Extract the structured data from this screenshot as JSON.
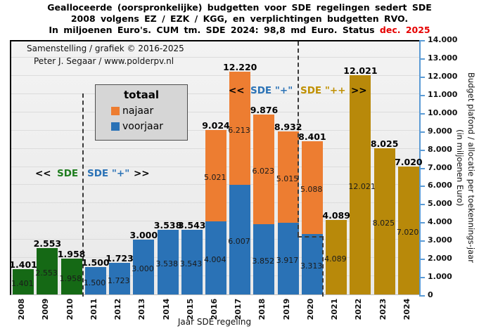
{
  "title": {
    "line1": "Gealloceerde (oorspronkelijke) budgetten voor SDE regelingen sedert SDE",
    "line2": "2008 volgens EZ / EZK / KGG, en verplichtingen budgetten RVO.",
    "line3_prefix": "In miljoenen Euro's. CUM tm. SDE 2024: 98,8 md Euro. Status ",
    "line3_status": "dec. 2025",
    "status_color": "#e60000"
  },
  "credits": {
    "line1": "Samenstelling  / grafiek  © 2016-2025",
    "line2": "Peter J. Segaar / www.polderpv.nl"
  },
  "legend": {
    "title": "totaal",
    "items": [
      {
        "label": "najaar",
        "kind": "najaar"
      },
      {
        "label": "voorjaar",
        "kind": "voorjaar"
      }
    ]
  },
  "annotations": {
    "lower": {
      "arrows_left": "<<",
      "sde_label": "SDE",
      "plus_label": "SDE \"+\"",
      "arrows_right": ">>"
    },
    "upper": {
      "arrows_left": "<<",
      "plus_label": "SDE \"+\"",
      "pp_label": "SDE \"++",
      "arrows_right": ">>"
    }
  },
  "chart_data": {
    "type": "bar",
    "stacked": true,
    "title": "Gealloceerde (oorspronkelijke) budgetten voor SDE regelingen sedert SDE 2008",
    "xlabel": "Jaar SDE regeling",
    "ylabel_line1": "Budget plafond / allocatie per toekennings-jaar",
    "ylabel_line2": "(in miljoenen Euro)",
    "ylim": [
      0,
      14000
    ],
    "grid_step": 1000,
    "grid": true,
    "legend_position": "upper-left-inside",
    "y_ticks": [
      "14.000",
      "13.000",
      "12.000",
      "11.000",
      "10.000",
      "9.000",
      "8.000",
      "7.000",
      "6.000",
      "5.000",
      "4.000",
      "3.000",
      "2.000",
      "1.000",
      "0"
    ],
    "categories": [
      "2008",
      "2009",
      "2010",
      "2011",
      "2012",
      "2013",
      "2014",
      "2015",
      "2016",
      "2017",
      "2018",
      "2019",
      "2020",
      "2021",
      "2022",
      "2023",
      "2024"
    ],
    "colors": {
      "sde": "#156915",
      "voorjaar": "#2a72b6",
      "najaar": "#ed7d31",
      "sde_pp": "#b8890a",
      "axis": "#5b9bd5",
      "era_green": "#1e7d1e",
      "era_blue": "#2a72b6",
      "era_gold": "#c09000"
    },
    "bars": [
      {
        "year": "2008",
        "era": "SDE",
        "total_value": 1401,
        "total_label": "1.401",
        "segments": [
          {
            "kind": "sde",
            "value": 1401,
            "label": "1.401"
          }
        ]
      },
      {
        "year": "2009",
        "era": "SDE",
        "total_value": 2553,
        "total_label": "2.553",
        "segments": [
          {
            "kind": "sde",
            "value": 2553,
            "label": "2.553"
          }
        ]
      },
      {
        "year": "2010",
        "era": "SDE",
        "total_value": 1958,
        "total_label": "1.958",
        "segments": [
          {
            "kind": "sde",
            "value": 1958,
            "label": "1.958"
          }
        ]
      },
      {
        "year": "2011",
        "era": "SDE+",
        "total_value": 1500,
        "total_label": "1.500",
        "segments": [
          {
            "kind": "voorjaar",
            "value": 1500,
            "label": "1.500"
          }
        ]
      },
      {
        "year": "2012",
        "era": "SDE+",
        "total_value": 1723,
        "total_label": "1.723",
        "segments": [
          {
            "kind": "voorjaar",
            "value": 1723,
            "label": "1.723"
          }
        ]
      },
      {
        "year": "2013",
        "era": "SDE+",
        "total_value": 3000,
        "total_label": "3.000",
        "segments": [
          {
            "kind": "voorjaar",
            "value": 3000,
            "label": "3.000"
          }
        ]
      },
      {
        "year": "2014",
        "era": "SDE+",
        "total_value": 3538,
        "total_label": "3.538",
        "segments": [
          {
            "kind": "voorjaar",
            "value": 3538,
            "label": "3.538"
          }
        ]
      },
      {
        "year": "2015",
        "era": "SDE+",
        "total_value": 3543,
        "total_label": "3.543",
        "segments": [
          {
            "kind": "voorjaar",
            "value": 3543,
            "label": "3.543"
          }
        ]
      },
      {
        "year": "2016",
        "era": "SDE+",
        "total_value": 9024,
        "total_label": "9.024",
        "segments": [
          {
            "kind": "voorjaar",
            "value": 4004,
            "label": "4.004"
          },
          {
            "kind": "najaar",
            "value": 5021,
            "label": "5.021"
          }
        ]
      },
      {
        "year": "2017",
        "era": "SDE+",
        "total_value": 12220,
        "total_label": "12.220",
        "segments": [
          {
            "kind": "voorjaar",
            "value": 6007,
            "label": "6.007"
          },
          {
            "kind": "najaar",
            "value": 6213,
            "label": "6.213"
          }
        ]
      },
      {
        "year": "2018",
        "era": "SDE+",
        "total_value": 9876,
        "total_label": "9.876",
        "segments": [
          {
            "kind": "voorjaar",
            "value": 3852,
            "label": "3.852"
          },
          {
            "kind": "najaar",
            "value": 6023,
            "label": "6.023"
          }
        ]
      },
      {
        "year": "2019",
        "era": "SDE+",
        "total_value": 8932,
        "total_label": "8.932",
        "segments": [
          {
            "kind": "voorjaar",
            "value": 3917,
            "label": "3.917"
          },
          {
            "kind": "najaar",
            "value": 5015,
            "label": "5.015"
          }
        ]
      },
      {
        "year": "2020",
        "era": "SDE+/SDE++",
        "total_value": 8401,
        "total_label": "8.401",
        "segments": [
          {
            "kind": "voorjaar",
            "value": 3313,
            "label": "3.313"
          },
          {
            "kind": "najaar",
            "value": 5088,
            "label": "5.088"
          }
        ]
      },
      {
        "year": "2021",
        "era": "SDE++",
        "total_value": 4089,
        "total_label": "4.089",
        "segments": [
          {
            "kind": "sde_pp",
            "value": 4089,
            "label": "4.089"
          }
        ]
      },
      {
        "year": "2022",
        "era": "SDE++",
        "total_value": 12021,
        "total_label": "12.021",
        "segments": [
          {
            "kind": "sde_pp",
            "value": 12021,
            "label": "12.021"
          }
        ]
      },
      {
        "year": "2023",
        "era": "SDE++",
        "total_value": 8025,
        "total_label": "8.025",
        "segments": [
          {
            "kind": "sde_pp",
            "value": 8025,
            "label": "8.025"
          }
        ]
      },
      {
        "year": "2024",
        "era": "SDE++",
        "total_value": 7020,
        "total_label": "7.020",
        "segments": [
          {
            "kind": "sde_pp",
            "value": 7020,
            "label": "7.020"
          }
        ]
      }
    ]
  }
}
